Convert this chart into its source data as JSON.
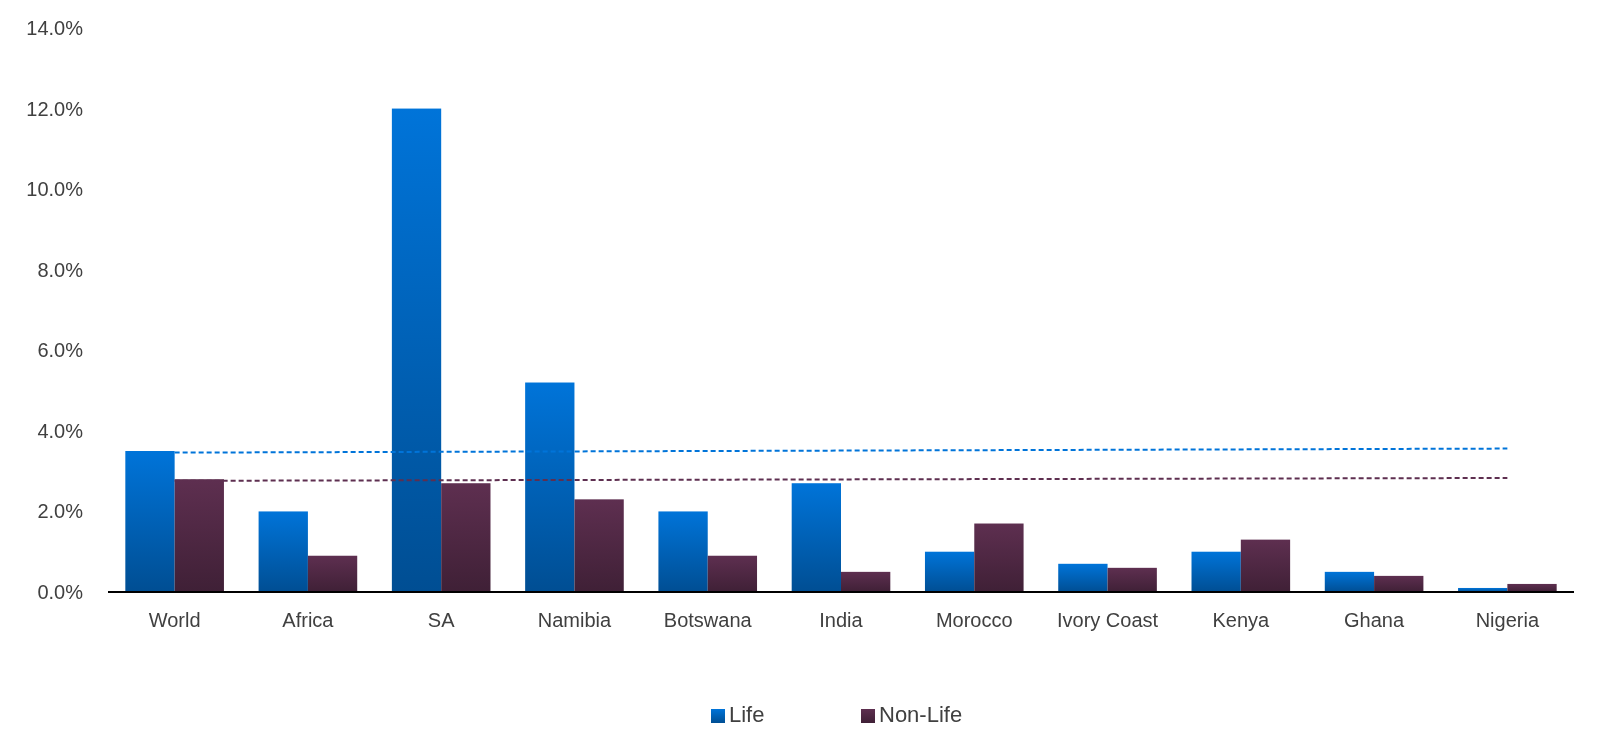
{
  "chart_data": {
    "type": "bar",
    "categories": [
      "World",
      "Africa",
      "SA",
      "Namibia",
      "Botswana",
      "India",
      "Morocco",
      "Ivory Coast",
      "Kenya",
      "Ghana",
      "Nigeria"
    ],
    "series": [
      {
        "name": "Life",
        "color": "#0074d9",
        "values": [
          3.5,
          2.0,
          12.0,
          5.2,
          2.0,
          2.7,
          1.0,
          0.7,
          1.0,
          0.5,
          0.1
        ]
      },
      {
        "name": "Non-Life",
        "color": "#5e2f50",
        "values": [
          2.8,
          0.9,
          2.7,
          2.3,
          0.9,
          0.5,
          1.7,
          0.6,
          1.3,
          0.4,
          0.2
        ]
      },
      {
        "type": "line",
        "color": "#0074d9",
        "x": [
          "World",
          "Nigeria"
        ],
        "values": [
          3.46,
          3.56
        ],
        "line_style": "dashed"
      },
      {
        "type": "line",
        "color": "#5e2f50",
        "x": [
          "World",
          "Nigeria"
        ],
        "values": [
          2.76,
          2.83
        ],
        "line_style": "dashed"
      }
    ],
    "ylim": [
      0,
      14
    ],
    "yticks": [
      {
        "value": 0,
        "label": "0.0%"
      },
      {
        "value": 2,
        "label": "2.0%"
      },
      {
        "value": 4,
        "label": "4.0%"
      },
      {
        "value": 6,
        "label": "6.0%"
      },
      {
        "value": 8,
        "label": "8.0%"
      },
      {
        "value": 10,
        "label": "10.0%"
      },
      {
        "value": 12,
        "label": "12.0%"
      },
      {
        "value": 14,
        "label": "14.0%"
      }
    ],
    "grid": false,
    "legend": "bottom"
  }
}
